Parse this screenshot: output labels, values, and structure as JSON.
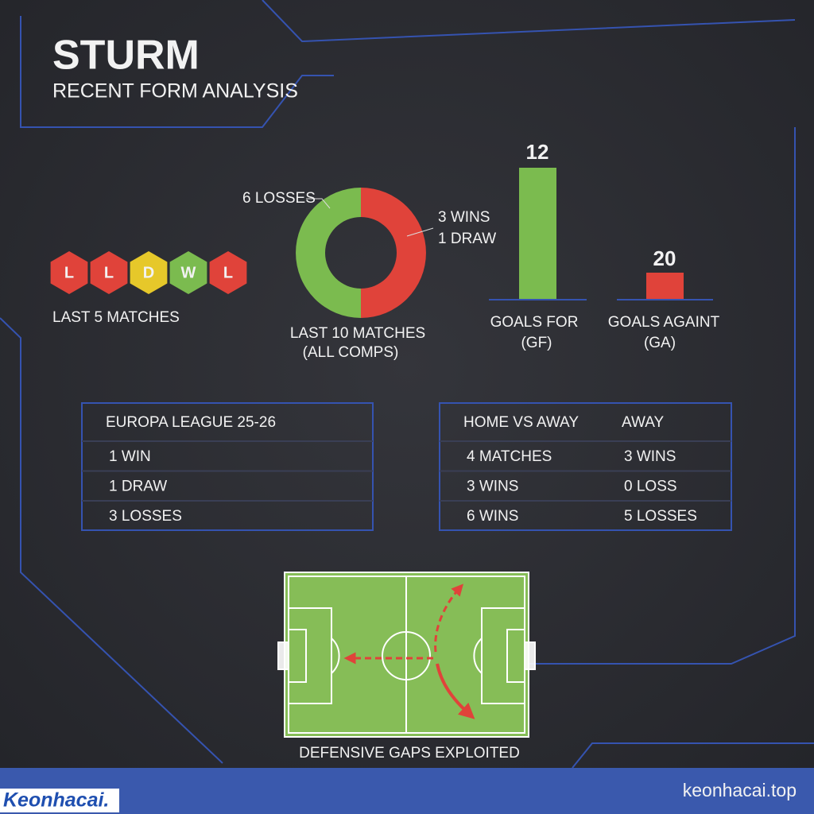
{
  "header": {
    "title": "STURM",
    "subtitle": "RECENT FORM ANALYSIS"
  },
  "last5": {
    "results": [
      "L",
      "L",
      "D",
      "W",
      "L"
    ],
    "label": "LAST 5 MATCHES",
    "colors": {
      "L": "#e0433a",
      "D": "#e6c82a",
      "W": "#7bbb4f"
    }
  },
  "donut": {
    "losses_label": "6 LOSSES",
    "wins_label": "3 WINS",
    "draw_label": "1 DRAW",
    "caption": [
      "LAST 10 MATCHES",
      "(ALL COMPS)"
    ]
  },
  "goals": {
    "for": {
      "value_label": "12",
      "label": [
        "GOALS FOR",
        "(GF)"
      ]
    },
    "against": {
      "value_label": "20",
      "label": [
        "GOALS AGAINT",
        "(GA)"
      ]
    }
  },
  "tables": [
    {
      "header": [
        "EUROPA LEAGUE 25-26"
      ],
      "rows": [
        [
          "1 WIN"
        ],
        [
          "1 DRAW"
        ],
        [
          "3 LOSSES"
        ]
      ]
    },
    {
      "header": [
        "HOME VS AWAY",
        "AWAY"
      ],
      "rows": [
        [
          "4 MATCHES",
          "3 WINS"
        ],
        [
          "3 WINS",
          "0 LOSS"
        ],
        [
          "6 WINS",
          "5 LOSSES"
        ]
      ]
    }
  ],
  "pitch": {
    "caption": "DEFENSIVE GAPS EXPLOITED"
  },
  "footer": {
    "logo": "Keonhacai.",
    "url": "keonhacai.top"
  }
}
